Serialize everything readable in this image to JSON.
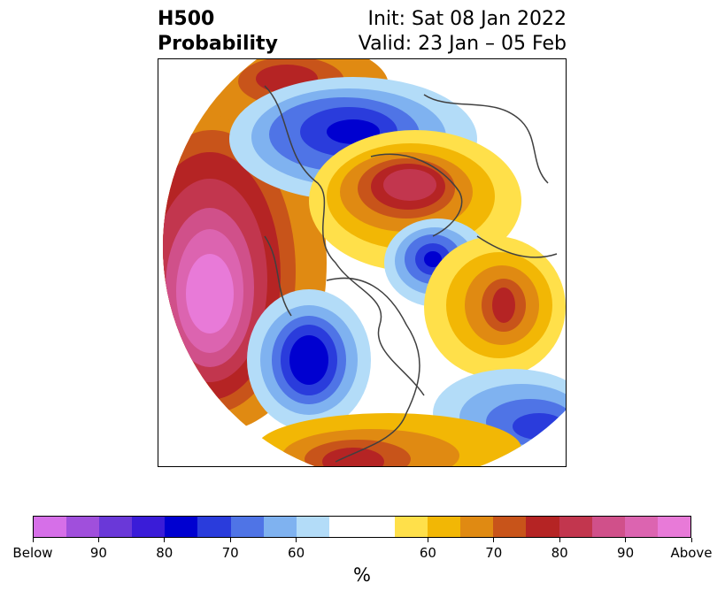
{
  "header": {
    "variable": "H500",
    "product": "Probability",
    "init": "Init: Sat 08 Jan 2022",
    "valid": "Valid: 23 Jan – 05 Feb"
  },
  "colorbar": {
    "below_colors": [
      "#d66fe8",
      "#a04fdc",
      "#6a38d8",
      "#3a1cd8",
      "#0000d0",
      "#2a3cdc",
      "#4f74e6",
      "#7fb2f0",
      "#b3dcf8"
    ],
    "neutral_color": "#ffffff",
    "above_colors": [
      "#ffe04a",
      "#f2b705",
      "#e08a12",
      "#c8541a",
      "#b52424",
      "#c2364e",
      "#d0508a",
      "#dc64b0",
      "#e87ad8"
    ],
    "tick_labels": [
      "Below",
      "90",
      "80",
      "70",
      "60",
      "60",
      "70",
      "80",
      "90",
      "Above"
    ],
    "unit": "%"
  }
}
